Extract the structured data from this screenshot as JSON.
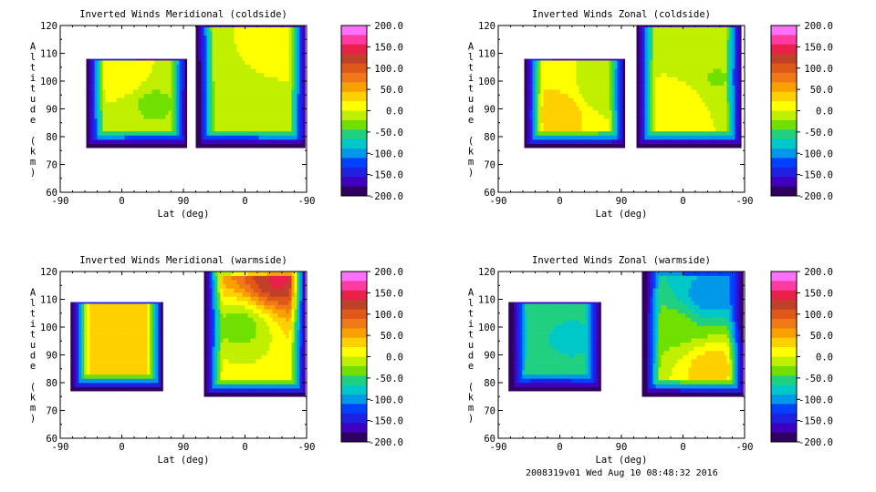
{
  "footer": "2008319v01 Wed Aug 10 08:48:32 2016",
  "colorbar": {
    "ticks": [
      "200.0",
      "150.0",
      "100.0",
      "50.0",
      "0.0",
      "-50.0",
      "-100.0",
      "-150.0",
      "-200.0"
    ],
    "colors": [
      "#ff70ff",
      "#ff3aa0",
      "#e8204a",
      "#c04028",
      "#e05818",
      "#f07818",
      "#f8a000",
      "#ffd000",
      "#ffff00",
      "#c0f000",
      "#70e000",
      "#20d080",
      "#00c8c8",
      "#0098e8",
      "#0040ff",
      "#2020e0",
      "#4000c0",
      "#300060"
    ]
  },
  "chart_data": [
    {
      "type": "heatmap",
      "title": "Inverted Winds Meridional (coldside)",
      "xlabel": "Lat (deg)",
      "ylabel": "Altitude (km)",
      "xticks": [
        "-90",
        "0",
        "90",
        "0",
        "-90"
      ],
      "yticks": [
        "60",
        "70",
        "80",
        "90",
        "100",
        "110",
        "120"
      ],
      "ylim": [
        60,
        120
      ],
      "zlim": [
        -200,
        200
      ],
      "coverage": [
        [
          -52,
          95,
          76,
          108
        ],
        [
          108,
          268,
          76,
          120
        ]
      ],
      "features": [
        {
          "x": 0,
          "y": 100,
          "value": 20
        },
        {
          "x": 40,
          "y": 92,
          "value": -30
        },
        {
          "x": 170,
          "y": 95,
          "value": -20
        },
        {
          "x": 215,
          "y": 108,
          "value": 10
        }
      ]
    },
    {
      "type": "heatmap",
      "title": "Inverted Winds Zonal (coldside)",
      "xlabel": "Lat (deg)",
      "ylabel": "Altitude (km)",
      "xticks": [
        "-90",
        "0",
        "90",
        "0",
        "-90"
      ],
      "yticks": [
        "60",
        "70",
        "80",
        "90",
        "100",
        "110",
        "120"
      ],
      "ylim": [
        60,
        120
      ],
      "zlim": [
        -200,
        200
      ],
      "coverage": [
        [
          -52,
          95,
          76,
          108
        ],
        [
          112,
          265,
          76,
          120
        ]
      ],
      "features": [
        {
          "x": 0,
          "y": 88,
          "value": 40
        },
        {
          "x": 60,
          "y": 95,
          "value": -20
        },
        {
          "x": 175,
          "y": 92,
          "value": 15
        },
        {
          "x": 225,
          "y": 100,
          "value": -25
        }
      ]
    },
    {
      "type": "heatmap",
      "title": "Inverted Winds Meridional (warmside)",
      "xlabel": "Lat (deg)",
      "ylabel": "Altitude (km)",
      "xticks": [
        "-90",
        "0",
        "90",
        "0",
        "-90"
      ],
      "yticks": [
        "60",
        "70",
        "80",
        "90",
        "100",
        "110",
        "120"
      ],
      "ylim": [
        60,
        120
      ],
      "zlim": [
        -200,
        200
      ],
      "coverage": [
        [
          -75,
          60,
          77,
          109
        ],
        [
          120,
          268,
          75,
          120
        ]
      ],
      "features": [
        {
          "x": -10,
          "y": 88,
          "value": 30
        },
        {
          "x": 50,
          "y": 92,
          "value": 25
        },
        {
          "x": 225,
          "y": 116,
          "value": 140
        },
        {
          "x": 170,
          "y": 100,
          "value": -40
        }
      ]
    },
    {
      "type": "heatmap",
      "title": "Inverted Winds Zonal (warmside)",
      "xlabel": "Lat (deg)",
      "ylabel": "Altitude (km)",
      "xticks": [
        "-90",
        "0",
        "90",
        "0",
        "-90"
      ],
      "yticks": [
        "60",
        "70",
        "80",
        "90",
        "100",
        "110",
        "120"
      ],
      "ylim": [
        60,
        120
      ],
      "zlim": [
        -200,
        200
      ],
      "coverage": [
        [
          -75,
          60,
          77,
          109
        ],
        [
          120,
          268,
          75,
          120
        ]
      ],
      "features": [
        {
          "x": 20,
          "y": 95,
          "value": -70
        },
        {
          "x": 220,
          "y": 85,
          "value": 45
        },
        {
          "x": 215,
          "y": 110,
          "value": -110
        },
        {
          "x": 165,
          "y": 100,
          "value": -30
        }
      ]
    }
  ]
}
